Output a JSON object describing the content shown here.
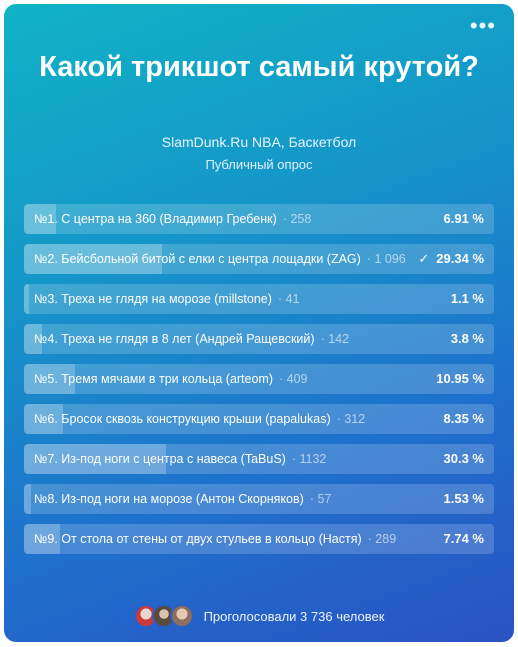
{
  "menu_label": "•••",
  "title": "Какой трикшот самый крутой?",
  "author": "SlamDunk.Ru NBA, Баскетбол",
  "subtitle": "Публичный опрос",
  "options": [
    {
      "label": "№1. С центра на 360 (Владимир Гребенк)",
      "count": "258",
      "percent": "6.91 %",
      "fraction": 0.0691,
      "selected": false
    },
    {
      "label": "№2. Бейсбольной битой с елки с центра лощадки (ZAG)",
      "count": "1 096",
      "percent": "29.34 %",
      "fraction": 0.2934,
      "selected": true
    },
    {
      "label": "№3. Треха не глядя на морозе (millstone)",
      "count": "41",
      "percent": "1.1 %",
      "fraction": 0.011,
      "selected": false
    },
    {
      "label": "№4. Треха не глядя в 8 лет (Андрей Ращевский)",
      "count": "142",
      "percent": "3.8 %",
      "fraction": 0.038,
      "selected": false
    },
    {
      "label": "№5. Тремя мячами в три кольца (arteom)",
      "count": "409",
      "percent": "10.95 %",
      "fraction": 0.1095,
      "selected": false
    },
    {
      "label": "№6. Бросок сквозь конструкцию крыши (papalukas)",
      "count": "312",
      "percent": "8.35 %",
      "fraction": 0.0835,
      "selected": false
    },
    {
      "label": "№7. Из-под ноги с центра с навеса (TaBuS)",
      "count": "1132",
      "percent": "30.3 %",
      "fraction": 0.303,
      "selected": false
    },
    {
      "label": "№8. Из-под ноги на морозе (Антон Скорняков)",
      "count": "57",
      "percent": "1.53 %",
      "fraction": 0.0153,
      "selected": false
    },
    {
      "label": "№9. От стола от стены от двух стульев в кольцо (Настя)",
      "count": "289",
      "percent": "7.74 %",
      "fraction": 0.0774,
      "selected": false
    }
  ],
  "check_mark": "✓",
  "footer": {
    "voted_text": "Проголосовали 3 736 человек"
  }
}
